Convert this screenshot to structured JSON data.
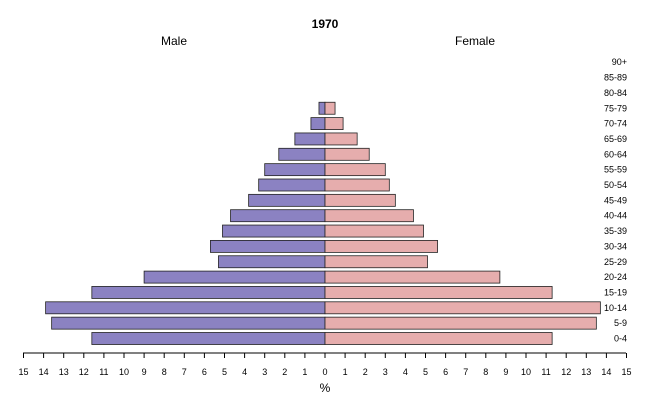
{
  "chart_data": {
    "type": "bar",
    "orientation": "horizontal",
    "title": "1970",
    "left_label": "Male",
    "right_label": "Female",
    "xlabel": "%",
    "xlim": [
      -15,
      15
    ],
    "x_ticks": [
      15,
      14,
      13,
      12,
      11,
      10,
      9,
      8,
      7,
      6,
      5,
      4,
      3,
      2,
      1,
      0,
      1,
      2,
      3,
      4,
      5,
      6,
      7,
      8,
      9,
      10,
      11,
      12,
      13,
      14,
      15
    ],
    "categories": [
      "0-4",
      "5-9",
      "10-14",
      "15-19",
      "20-24",
      "25-29",
      "30-34",
      "35-39",
      "40-44",
      "45-49",
      "50-54",
      "55-59",
      "60-64",
      "65-69",
      "70-74",
      "75-79",
      "80-84",
      "85-89",
      "90+"
    ],
    "series": [
      {
        "name": "Male",
        "color": "#8b82c2",
        "values": [
          11.6,
          13.6,
          13.9,
          11.6,
          9.0,
          5.3,
          5.7,
          5.1,
          4.7,
          3.8,
          3.3,
          3.0,
          2.3,
          1.5,
          0.7,
          0.3,
          0,
          0,
          0
        ]
      },
      {
        "name": "Female",
        "color": "#e6adad",
        "values": [
          11.3,
          13.5,
          13.7,
          11.3,
          8.7,
          5.1,
          5.6,
          4.9,
          4.4,
          3.5,
          3.2,
          3.0,
          2.2,
          1.6,
          0.9,
          0.5,
          0,
          0,
          0
        ]
      }
    ]
  }
}
